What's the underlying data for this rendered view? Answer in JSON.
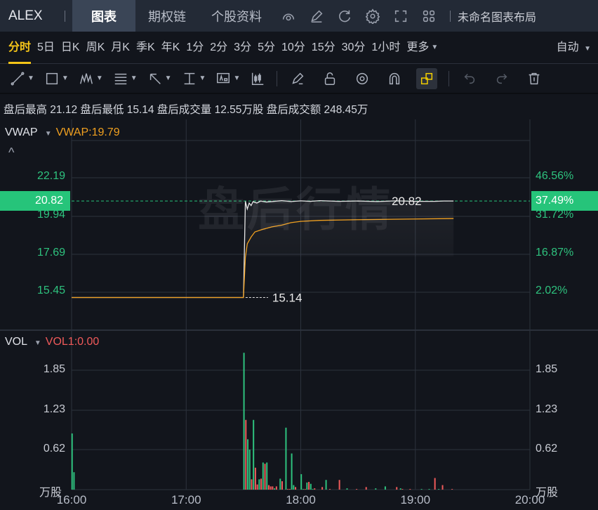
{
  "header": {
    "ticker": "ALEX",
    "tabs": [
      "图表",
      "期权链",
      "个股资料"
    ],
    "active_tab": "图表",
    "layout_name": "未命名图表布局",
    "icons": [
      "gauge-icon",
      "edit-icon",
      "refresh-icon",
      "settings-icon",
      "fullscreen-icon",
      "grid-layout-icon"
    ]
  },
  "periods": {
    "items": [
      "分时",
      "5日",
      "日K",
      "周K",
      "月K",
      "季K",
      "年K",
      "1分",
      "2分",
      "3分",
      "5分",
      "10分",
      "15分",
      "30分",
      "1小时",
      "更多"
    ],
    "active": "分时",
    "scale_mode": "自动"
  },
  "toolbar": {
    "tools": [
      "line-tool-icon",
      "rectangle-tool-icon",
      "pattern-tool-icon",
      "fibonacci-tool-icon",
      "arrow-tool-icon",
      "measure-tool-icon",
      "text-tool-icon",
      "candle-tool-icon",
      "pencil-icon",
      "unlock-icon",
      "eye-icon",
      "magnet-icon",
      "link-icon",
      "undo-icon",
      "redo-icon",
      "trash-icon"
    ]
  },
  "info": {
    "text": "盘后最高 21.12 盘后最低 15.14 盘后成交量 12.55万股 盘后成交额 248.45万"
  },
  "price_pane": {
    "indicator": "VWAP",
    "indicator_value": "VWAP:19.79",
    "watermark": "盘后行情",
    "collapse_icon": "chevron-up-icon"
  },
  "volume_pane": {
    "indicator": "VOL",
    "indicator_value": "VOL1:0.00",
    "unit": "万股"
  },
  "colors": {
    "up": "#f05a5a",
    "down": "#2ec27e",
    "vwap": "#f0a020",
    "price": "#e8e8e8",
    "accent": "#f5c518"
  },
  "chart_data": [
    {
      "type": "line",
      "x_range": [
        "16:00",
        "20:00"
      ],
      "y_range": [
        14.5,
        23.3
      ],
      "left_ticks": [
        "22.19",
        "19.94",
        "17.69",
        "15.45"
      ],
      "right_ticks": [
        "46.56%",
        "31.72%",
        "16.87%",
        "2.02%"
      ],
      "current_price": "20.82",
      "current_pct": "37.49%",
      "low_label": "15.14",
      "last_label": "20.82",
      "x_ticks": [
        "16:00",
        "17:00",
        "18:00",
        "19:00",
        "20:00"
      ],
      "series": [
        {
          "name": "price",
          "points": [
            [
              "16:00",
              15.14
            ],
            [
              "17:30",
              15.14
            ],
            [
              "17:31",
              20.8
            ],
            [
              "17:32",
              20.35
            ],
            [
              "17:33",
              20.7
            ],
            [
              "17:34",
              20.55
            ],
            [
              "17:35",
              20.78
            ],
            [
              "17:37",
              20.7
            ],
            [
              "17:39",
              20.82
            ],
            [
              "17:42",
              20.76
            ],
            [
              "17:46",
              20.8
            ],
            [
              "17:50",
              20.84
            ],
            [
              "17:55",
              20.79
            ],
            [
              "18:00",
              20.83
            ],
            [
              "18:05",
              20.8
            ],
            [
              "18:10",
              20.84
            ],
            [
              "18:20",
              20.8
            ],
            [
              "18:30",
              20.82
            ],
            [
              "18:40",
              20.79
            ],
            [
              "18:50",
              20.83
            ],
            [
              "19:00",
              20.8
            ],
            [
              "19:10",
              20.8
            ],
            [
              "19:15",
              20.82
            ],
            [
              "19:20",
              20.82
            ]
          ]
        },
        {
          "name": "VWAP",
          "points": [
            [
              "16:00",
              15.14
            ],
            [
              "17:30",
              15.14
            ],
            [
              "17:31",
              17.5
            ],
            [
              "17:32",
              18.3
            ],
            [
              "17:34",
              18.7
            ],
            [
              "17:36",
              19.0
            ],
            [
              "17:40",
              19.15
            ],
            [
              "17:45",
              19.3
            ],
            [
              "17:50",
              19.4
            ],
            [
              "17:55",
              19.55
            ],
            [
              "18:00",
              19.62
            ],
            [
              "18:10",
              19.68
            ],
            [
              "18:30",
              19.72
            ],
            [
              "19:00",
              19.76
            ],
            [
              "19:20",
              19.79
            ]
          ]
        }
      ]
    },
    {
      "type": "bar",
      "y_range": [
        0,
        1.85
      ],
      "ticks": [
        "1.85",
        "1.23",
        "0.62"
      ],
      "unit": "万股",
      "bars": [
        [
          "16:00",
          0.87,
          "down"
        ],
        [
          "16:01",
          0.27,
          "down"
        ],
        [
          "17:30",
          2.12,
          "down"
        ],
        [
          "17:31",
          1.08,
          "up"
        ],
        [
          "17:32",
          0.78,
          "down"
        ],
        [
          "17:33",
          0.62,
          "down"
        ],
        [
          "17:34",
          0.16,
          "up"
        ],
        [
          "17:35",
          1.08,
          "down"
        ],
        [
          "17:36",
          0.34,
          "up"
        ],
        [
          "17:37",
          0.08,
          "up"
        ],
        [
          "17:38",
          0.16,
          "down"
        ],
        [
          "17:39",
          0.17,
          "up"
        ],
        [
          "17:40",
          0.42,
          "down"
        ],
        [
          "17:41",
          0.4,
          "up"
        ],
        [
          "17:42",
          0.42,
          "down"
        ],
        [
          "17:43",
          0.07,
          "up"
        ],
        [
          "17:44",
          0.05,
          "up"
        ],
        [
          "17:45",
          0.05,
          "up"
        ],
        [
          "17:46",
          0.02,
          "down"
        ],
        [
          "17:47",
          0.05,
          "up"
        ],
        [
          "17:49",
          0.17,
          "down"
        ],
        [
          "17:50",
          0.13,
          "up"
        ],
        [
          "17:52",
          0.96,
          "down"
        ],
        [
          "17:53",
          0.01,
          "up"
        ],
        [
          "17:54",
          0.01,
          "up"
        ],
        [
          "17:55",
          0.56,
          "down"
        ],
        [
          "17:56",
          0.07,
          "down"
        ],
        [
          "17:57",
          0.04,
          "up"
        ],
        [
          "18:00",
          0.24,
          "down"
        ],
        [
          "18:01",
          0.01,
          "down"
        ],
        [
          "18:02",
          0.01,
          "up"
        ],
        [
          "18:03",
          0.11,
          "down"
        ],
        [
          "18:04",
          0.12,
          "up"
        ],
        [
          "18:05",
          0.09,
          "down"
        ],
        [
          "18:06",
          0.01,
          "down"
        ],
        [
          "18:07",
          0.02,
          "up"
        ],
        [
          "18:11",
          0.04,
          "up"
        ],
        [
          "18:13",
          0.15,
          "down"
        ],
        [
          "18:15",
          0.01,
          "up"
        ],
        [
          "18:20",
          0.15,
          "up"
        ],
        [
          "18:24",
          0.02,
          "down"
        ],
        [
          "18:29",
          0.01,
          "up"
        ],
        [
          "18:34",
          0.04,
          "up"
        ],
        [
          "18:39",
          0.02,
          "down"
        ],
        [
          "18:44",
          0.05,
          "down"
        ],
        [
          "18:50",
          0.04,
          "up"
        ],
        [
          "18:52",
          0.02,
          "down"
        ],
        [
          "18:53",
          0.01,
          "up"
        ],
        [
          "18:57",
          0.01,
          "up"
        ],
        [
          "19:03",
          0.01,
          "down"
        ],
        [
          "19:07",
          0.01,
          "down"
        ],
        [
          "19:10",
          0.18,
          "up"
        ],
        [
          "19:12",
          0.01,
          "down"
        ],
        [
          "19:14",
          0.07,
          "up"
        ],
        [
          "19:19",
          0.01,
          "up"
        ]
      ]
    }
  ]
}
